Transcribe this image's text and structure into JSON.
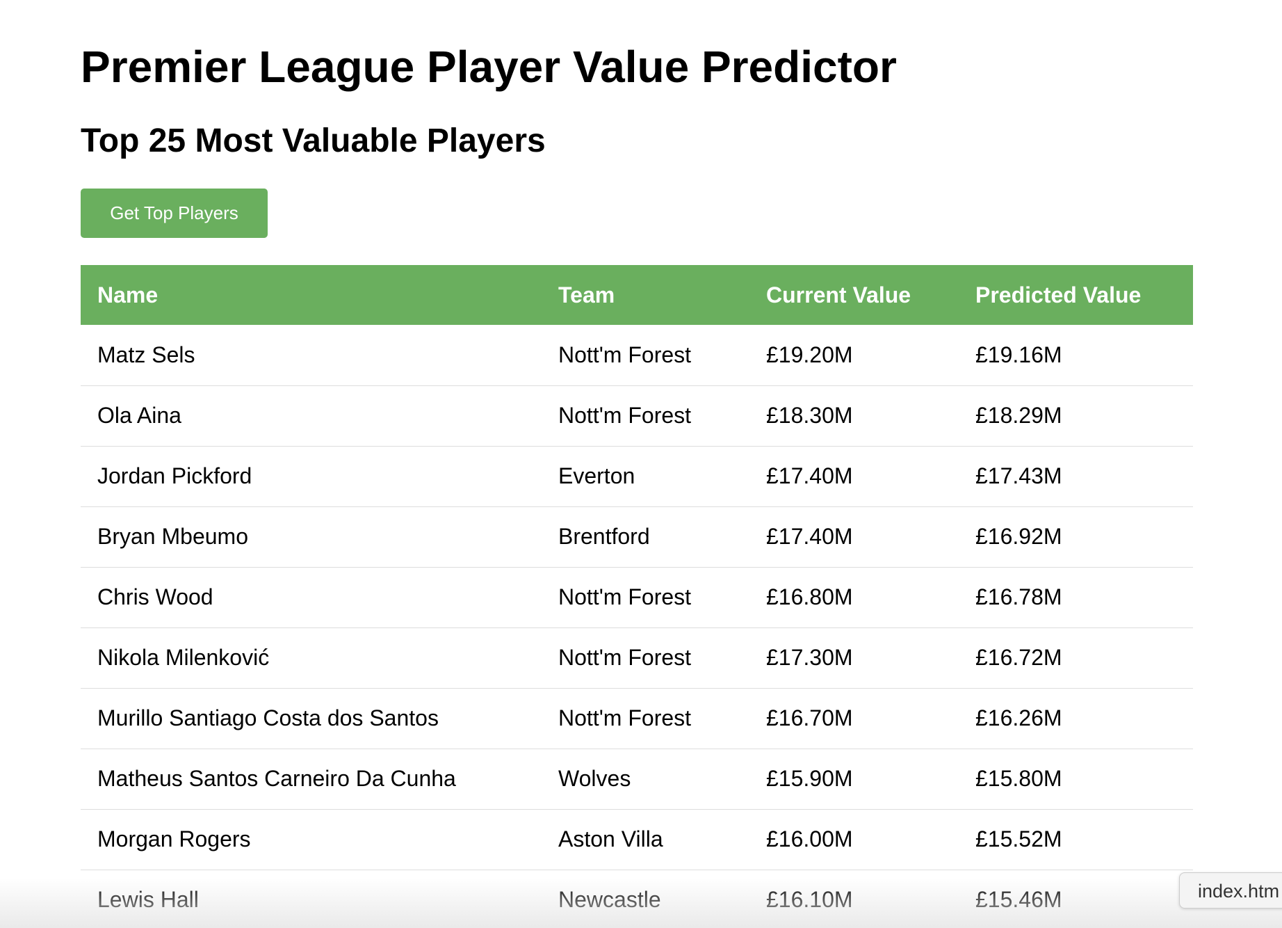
{
  "header": {
    "title": "Premier League Player Value Predictor",
    "subtitle": "Top 25 Most Valuable Players"
  },
  "actions": {
    "get_top_players_label": "Get Top Players"
  },
  "colors": {
    "accent_green": "#6aaf5e",
    "row_divider": "#dddddd"
  },
  "table": {
    "columns": [
      "Name",
      "Team",
      "Current Value",
      "Predicted Value"
    ],
    "rows": [
      {
        "name": "Matz Sels",
        "team": "Nott'm Forest",
        "current": "£19.20M",
        "predicted": "£19.16M"
      },
      {
        "name": "Ola Aina",
        "team": "Nott'm Forest",
        "current": "£18.30M",
        "predicted": "£18.29M"
      },
      {
        "name": "Jordan Pickford",
        "team": "Everton",
        "current": "£17.40M",
        "predicted": "£17.43M"
      },
      {
        "name": "Bryan Mbeumo",
        "team": "Brentford",
        "current": "£17.40M",
        "predicted": "£16.92M"
      },
      {
        "name": "Chris Wood",
        "team": "Nott'm Forest",
        "current": "£16.80M",
        "predicted": "£16.78M"
      },
      {
        "name": "Nikola Milenković",
        "team": "Nott'm Forest",
        "current": "£17.30M",
        "predicted": "£16.72M"
      },
      {
        "name": "Murillo Santiago Costa dos Santos",
        "team": "Nott'm Forest",
        "current": "£16.70M",
        "predicted": "£16.26M"
      },
      {
        "name": "Matheus Santos Carneiro Da Cunha",
        "team": "Wolves",
        "current": "£15.90M",
        "predicted": "£15.80M"
      },
      {
        "name": "Morgan Rogers",
        "team": "Aston Villa",
        "current": "£16.00M",
        "predicted": "£15.52M"
      },
      {
        "name": "Lewis Hall",
        "team": "Newcastle",
        "current": "£16.10M",
        "predicted": "£15.46M"
      }
    ]
  },
  "download_chip": {
    "filename": "index.htm"
  }
}
